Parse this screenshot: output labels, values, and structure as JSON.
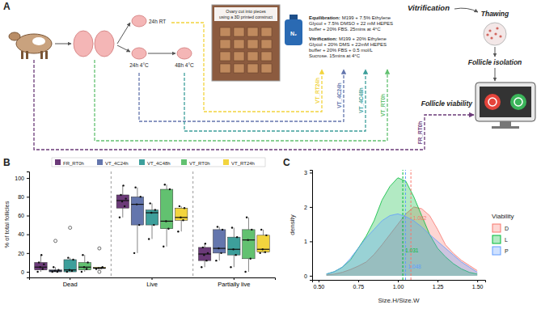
{
  "panels": {
    "a": "A",
    "b": "B",
    "c": "C"
  },
  "diagram": {
    "timepoints": [
      "24h RT",
      "24h 4°C",
      "48h 4°C"
    ],
    "photo_caption": [
      "Ovary cut into pieces",
      "using a 3D printed construct"
    ],
    "tank_label": "N₂",
    "title": "Vitrification",
    "equilibration": {
      "head": "Equilibration:",
      "lines": [
        "M199 + 7.5% Ethylene",
        "Glycol + 7.5% DMSO + 22 mM HEPES",
        "buffer + 20% FBS. 25mins at 4°C"
      ]
    },
    "vitrification": {
      "head": "Vitrification:",
      "lines": [
        "M199 + 20% Ethylene",
        "Glycol + 20% DMS + 22mM HEPES",
        "buffer + 20% FBS + 0.5 mol/L",
        "Sucrose. 15mins at 4°C"
      ]
    },
    "steps": [
      "Thawing",
      "Follicle isolation",
      "Follicle viability"
    ],
    "routes": [
      {
        "label": "VT_RT24h",
        "color": "#f2d43e"
      },
      {
        "label": "VT_4C24h",
        "color": "#6476ad"
      },
      {
        "label": "VT_4C48h",
        "color": "#3d9f9b"
      },
      {
        "label": "VT_RT0h",
        "color": "#62c170"
      },
      {
        "label": "FR_RT0h",
        "color": "#6b3a78"
      }
    ]
  },
  "chart_data": [
    {
      "type": "box",
      "categories": [
        "Dead",
        "Live",
        "Partially live"
      ],
      "y_label": "% of total follicles",
      "ylim": [
        -6,
        107
      ],
      "yticks": [
        0,
        20,
        40,
        60,
        80,
        100
      ],
      "grid": false,
      "legend": "top",
      "series": [
        {
          "name": "FR_RT0h",
          "color": "#6b3a78",
          "values": [
            {
              "min": 0,
              "q1": 2,
              "median": 5,
              "q3": 10,
              "max": 18,
              "outliers": [],
              "points": [
                0,
                3,
                5,
                8,
                10,
                18
              ]
            },
            {
              "min": 58,
              "q1": 68,
              "median": 76,
              "q3": 82,
              "max": 92,
              "outliers": [],
              "points": [
                58,
                70,
                75,
                78,
                82,
                92
              ]
            },
            {
              "min": 5,
              "q1": 12,
              "median": 19,
              "q3": 26,
              "max": 30,
              "outliers": [],
              "points": [
                5,
                12,
                18,
                20,
                26,
                30
              ]
            }
          ]
        },
        {
          "name": "VT_4C24h",
          "color": "#6476ad",
          "values": [
            {
              "min": 0,
              "q1": 0,
              "median": 1,
              "q3": 2,
              "max": 5,
              "outliers": [
                33
              ],
              "points": [
                0,
                0,
                1,
                2,
                5
              ]
            },
            {
              "min": 20,
              "q1": 50,
              "median": 72,
              "q3": 80,
              "max": 90,
              "outliers": [],
              "points": [
                20,
                50,
                72,
                80,
                90
              ]
            },
            {
              "min": 12,
              "q1": 20,
              "median": 25,
              "q3": 45,
              "max": 48,
              "outliers": [],
              "points": [
                12,
                20,
                25,
                45,
                48
              ]
            }
          ]
        },
        {
          "name": "VT_4C48h",
          "color": "#3d9f9b",
          "values": [
            {
              "min": 0,
              "q1": 0,
              "median": 2,
              "q3": 13,
              "max": 15,
              "outliers": [
                47
              ],
              "points": [
                0,
                1,
                2,
                13,
                15
              ]
            },
            {
              "min": 35,
              "q1": 50,
              "median": 63,
              "q3": 66,
              "max": 73,
              "outliers": [],
              "points": [
                35,
                50,
                63,
                66,
                73
              ]
            },
            {
              "min": 5,
              "q1": 18,
              "median": 24,
              "q3": 37,
              "max": 47,
              "outliers": [],
              "points": [
                5,
                18,
                24,
                37,
                47
              ]
            }
          ]
        },
        {
          "name": "VT_RT0h",
          "color": "#62c170",
          "values": [
            {
              "min": 0,
              "q1": 2,
              "median": 5,
              "q3": 10,
              "max": 18,
              "outliers": [],
              "points": [
                0,
                3,
                5,
                10,
                18
              ]
            },
            {
              "min": 27,
              "q1": 46,
              "median": 54,
              "q3": 88,
              "max": 93,
              "outliers": [],
              "points": [
                27,
                46,
                54,
                88,
                93
              ]
            },
            {
              "min": 0,
              "q1": 14,
              "median": 34,
              "q3": 45,
              "max": 58,
              "outliers": [],
              "points": [
                0,
                14,
                34,
                45,
                58
              ]
            }
          ]
        },
        {
          "name": "VT_RT24h",
          "color": "#f2d43e",
          "values": [
            {
              "min": 3,
              "q1": 3.5,
              "median": 4,
              "q3": 5,
              "max": 5,
              "outliers": [
                25,
                0
              ],
              "points": [
                3,
                4,
                4,
                5
              ]
            },
            {
              "min": 43,
              "q1": 55,
              "median": 58,
              "q3": 68,
              "max": 70,
              "outliers": [],
              "points": [
                43,
                55,
                58,
                68,
                70
              ]
            },
            {
              "min": 20,
              "q1": 21,
              "median": 24,
              "q3": 39,
              "max": 45,
              "outliers": [],
              "points": [
                20,
                21,
                24,
                39,
                45
              ]
            }
          ]
        }
      ]
    },
    {
      "type": "density",
      "x_label": "Size.H/Size.W",
      "y_label": "density",
      "legend_title": "Viability",
      "legend": "right",
      "grid": false,
      "x": [
        0.55,
        0.6,
        0.65,
        0.7,
        0.75,
        0.8,
        0.85,
        0.9,
        0.95,
        1.0,
        1.05,
        1.1,
        1.15,
        1.2,
        1.25,
        1.3,
        1.35,
        1.4,
        1.45,
        1.5
      ],
      "xlim": [
        0.46,
        1.55
      ],
      "xticks": [
        {
          "value": 0.5,
          "label": "0.50"
        },
        {
          "value": 0.75,
          "label": "0.75"
        },
        {
          "value": 1.0,
          "label": "1.00"
        },
        {
          "value": 1.25,
          "label": "1.25"
        },
        {
          "value": 1.5,
          "label": "1.50"
        }
      ],
      "ylim": [
        -0.12,
        3.08
      ],
      "yticks": [
        0,
        1,
        2,
        3
      ],
      "series": [
        {
          "name": "D",
          "color": "#f8766d",
          "mean": 1.082,
          "values": [
            0.02,
            0.05,
            0.1,
            0.18,
            0.28,
            0.4,
            0.62,
            0.9,
            1.2,
            1.5,
            1.8,
            2.0,
            1.95,
            1.75,
            1.35,
            0.9,
            0.65,
            0.45,
            0.3,
            0.15
          ]
        },
        {
          "name": "L",
          "color": "#00ba38",
          "mean": 1.031,
          "values": [
            0.05,
            0.12,
            0.25,
            0.45,
            0.8,
            1.15,
            1.6,
            2.2,
            2.6,
            2.85,
            2.75,
            2.3,
            1.75,
            1.2,
            0.8,
            0.55,
            0.35,
            0.2,
            0.1,
            0.05
          ]
        },
        {
          "name": "P",
          "color": "#619cff",
          "mean": 1.048,
          "values": [
            0.05,
            0.12,
            0.25,
            0.5,
            0.8,
            1.1,
            1.35,
            1.6,
            1.75,
            1.8,
            1.72,
            1.6,
            1.42,
            1.2,
            1.0,
            0.8,
            0.6,
            0.4,
            0.25,
            0.1
          ]
        }
      ]
    }
  ]
}
